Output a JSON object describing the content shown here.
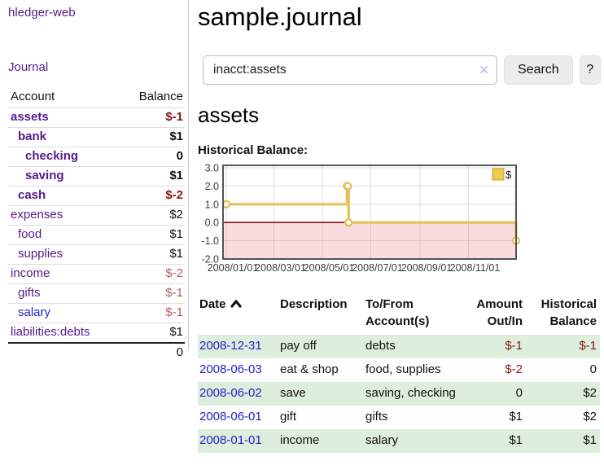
{
  "app": {
    "brand": "hledger-web",
    "nav_journal": "Journal"
  },
  "sidebar": {
    "header": {
      "account": "Account",
      "balance": "Balance"
    },
    "accounts": [
      {
        "name": "assets",
        "depth": 1,
        "balance": "$-1",
        "bold": true,
        "balance_tone": "neg-strong"
      },
      {
        "name": "bank",
        "depth": 2,
        "balance": "$1",
        "bold": true,
        "balance_tone": ""
      },
      {
        "name": "checking",
        "depth": 3,
        "balance": "0",
        "bold": true,
        "balance_tone": ""
      },
      {
        "name": "saving",
        "depth": 3,
        "balance": "$1",
        "bold": true,
        "balance_tone": ""
      },
      {
        "name": "cash",
        "depth": 2,
        "balance": "$-2",
        "bold": true,
        "balance_tone": "neg-strong"
      },
      {
        "name": "expenses",
        "depth": 1,
        "balance": "$2",
        "bold": false,
        "balance_tone": ""
      },
      {
        "name": "food",
        "depth": 2,
        "balance": "$1",
        "bold": false,
        "balance_tone": ""
      },
      {
        "name": "supplies",
        "depth": 2,
        "balance": "$1",
        "bold": false,
        "balance_tone": ""
      },
      {
        "name": "income",
        "depth": 1,
        "balance": "$-2",
        "bold": false,
        "balance_tone": "neg-soft"
      },
      {
        "name": "gifts",
        "depth": 2,
        "balance": "$-1",
        "bold": false,
        "balance_tone": "neg-soft"
      },
      {
        "name": "salary",
        "depth": 2,
        "balance": "$-1",
        "bold": false,
        "balance_tone": "neg-soft",
        "unvisited": true
      },
      {
        "name": "liabilities:debts",
        "depth": 1,
        "balance": "$1",
        "bold": false,
        "balance_tone": ""
      }
    ],
    "total": "0"
  },
  "header": {
    "title": "sample.journal"
  },
  "search": {
    "value": "inacct:assets",
    "clear_icon": "✕",
    "button_label": "Search",
    "help_label": "?"
  },
  "main": {
    "account_title": "assets",
    "chart_label": "Historical Balance:"
  },
  "chart_data": {
    "type": "line",
    "step": true,
    "title": "Historical Balance:",
    "legend": "$",
    "legend_position": "top-right",
    "grid": true,
    "x_start": "2008-01-01",
    "x_end": "2008-12-31",
    "xticks": [
      "2008/01/01",
      "2008/03/01",
      "2008/05/01",
      "2008/07/01",
      "2008/09/01",
      "2008/11/01"
    ],
    "yticks": [
      "3.0",
      "2.0",
      "1.0",
      "0.0",
      "-1.0",
      "-2.0"
    ],
    "ylim": [
      -2.0,
      3.0
    ],
    "series": [
      {
        "name": "$",
        "color": "#e5c15c",
        "points": [
          [
            "2008-01-01",
            1.0
          ],
          [
            "2008-06-01",
            2.0
          ],
          [
            "2008-06-02",
            2.0
          ],
          [
            "2008-06-03",
            0.0
          ],
          [
            "2008-12-31",
            -1.0
          ]
        ]
      }
    ],
    "colors": {
      "negative_fill": "#fbdcdc",
      "zero_line": "#8b1414",
      "border": "#545454",
      "gridline": "#888888"
    }
  },
  "register": {
    "columns": [
      {
        "label": "Date",
        "align": "left",
        "sorted_asc": true
      },
      {
        "label": "Description",
        "align": "left"
      },
      {
        "label": "To/From\nAccount(s)",
        "align": "left"
      },
      {
        "label": "Amount\nOut/In",
        "align": "right"
      },
      {
        "label": "Historical\nBalance",
        "align": "right"
      }
    ],
    "rows": [
      {
        "date": "2008-12-31",
        "description": "pay off",
        "accounts": "debts",
        "amount": "$-1",
        "amount_tone": "neg-strong",
        "balance": "$-1",
        "balance_tone": "neg-strong"
      },
      {
        "date": "2008-06-03",
        "description": "eat & shop",
        "accounts": "food, supplies",
        "amount": "$-2",
        "amount_tone": "neg-strong",
        "balance": "0",
        "balance_tone": ""
      },
      {
        "date": "2008-06-02",
        "description": "save",
        "accounts": "saving, checking",
        "amount": "0",
        "amount_tone": "",
        "balance": "$2",
        "balance_tone": ""
      },
      {
        "date": "2008-06-01",
        "description": "gift",
        "accounts": "gifts",
        "amount": "$1",
        "amount_tone": "",
        "balance": "$2",
        "balance_tone": ""
      },
      {
        "date": "2008-01-01",
        "description": "income",
        "accounts": "salary",
        "amount": "$1",
        "amount_tone": "",
        "balance": "$1",
        "balance_tone": ""
      }
    ]
  }
}
